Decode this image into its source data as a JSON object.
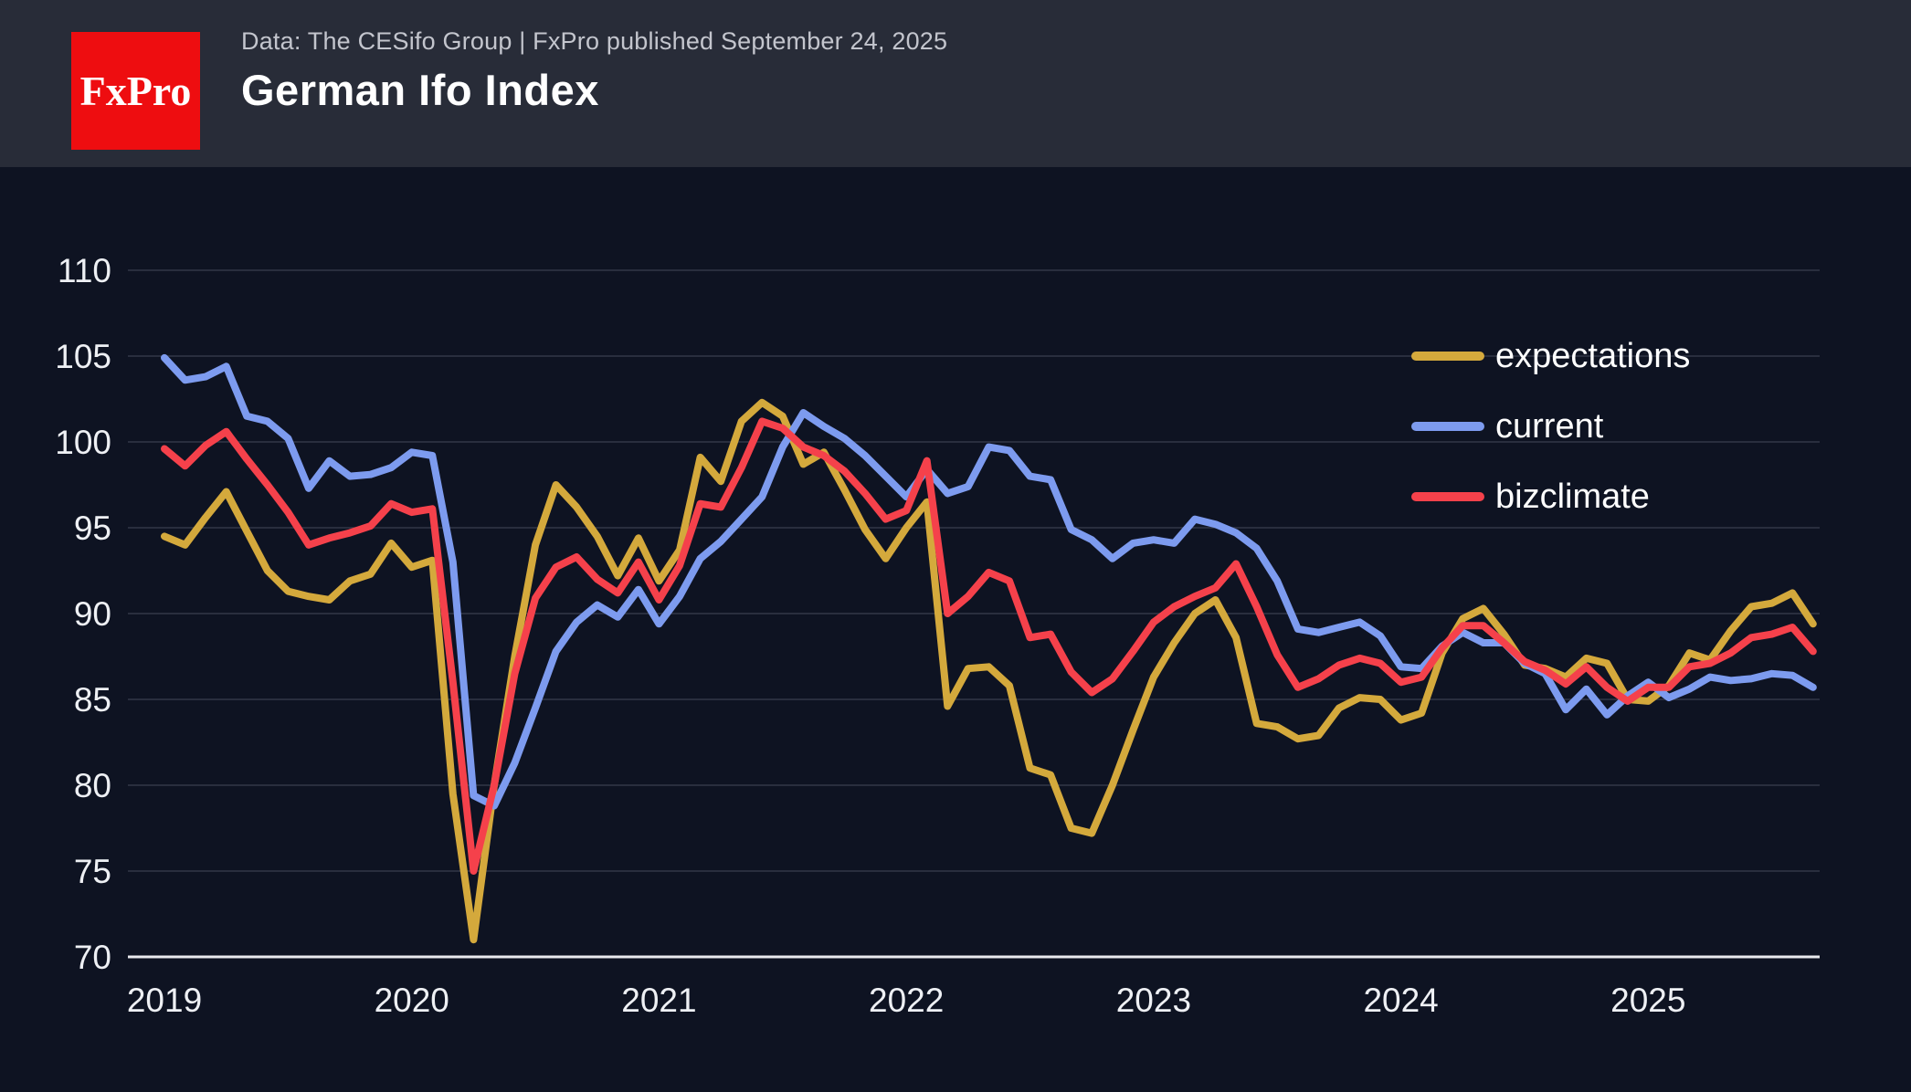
{
  "header": {
    "brand": "FxPro",
    "subtitle": "Data: The CESifo Group | FxPro published September 24, 2025",
    "title": "German Ifo Index"
  },
  "colors": {
    "logo_red": "#ee0d10",
    "header_bg": "#282c38",
    "chart_bg": "#0e1322",
    "gridline": "#323748",
    "axis_line": "#e9eaee",
    "tick_label": "#eef0f4",
    "expectations": "#d4a93c",
    "current": "#7d9bef",
    "bizclimate": "#f5414b"
  },
  "chart_data": {
    "type": "line",
    "title": "German Ifo Index",
    "x_start": "2019-01",
    "x_end": "2025-09",
    "frequency": "monthly",
    "xlabel": "",
    "ylabel": "",
    "ylim": [
      70,
      110
    ],
    "yticks": [
      110,
      105,
      100,
      95,
      90,
      85,
      80,
      75,
      70
    ],
    "xticks": [
      "2019",
      "2020",
      "2021",
      "2022",
      "2023",
      "2024",
      "2025"
    ],
    "grid": "horizontal",
    "legend_position": "right-top",
    "series": [
      {
        "name": "expectations",
        "color": "#d4a93c",
        "values": [
          94.5,
          94.0,
          95.6,
          97.1,
          94.8,
          92.5,
          91.3,
          91.0,
          90.8,
          91.9,
          92.3,
          94.1,
          92.7,
          93.1,
          79.5,
          71.0,
          80.0,
          87.5,
          94.0,
          97.5,
          96.2,
          94.5,
          92.2,
          94.4,
          91.9,
          93.7,
          99.1,
          97.7,
          101.2,
          102.3,
          101.5,
          98.7,
          99.4,
          97.2,
          94.9,
          93.2,
          95.0,
          96.5,
          84.6,
          86.8,
          86.9,
          85.8,
          81.0,
          80.6,
          77.5,
          77.2,
          80.0,
          83.2,
          86.3,
          88.3,
          90.0,
          90.8,
          88.6,
          83.6,
          83.4,
          82.7,
          82.9,
          84.5,
          85.1,
          85.0,
          83.8,
          84.2,
          87.7,
          89.7,
          90.3,
          88.8,
          87.0,
          86.8,
          86.3,
          87.4,
          87.1,
          85.0,
          84.9,
          85.8,
          87.7,
          87.3,
          89.0,
          90.4,
          90.6,
          91.2,
          89.4
        ]
      },
      {
        "name": "current",
        "color": "#7d9bef",
        "values": [
          104.9,
          103.6,
          103.8,
          104.4,
          101.5,
          101.2,
          100.2,
          97.3,
          98.9,
          98.0,
          98.1,
          98.5,
          99.4,
          99.2,
          93.0,
          79.4,
          78.8,
          81.3,
          84.5,
          87.8,
          89.5,
          90.5,
          89.8,
          91.4,
          89.4,
          91.0,
          93.2,
          94.2,
          95.5,
          96.8,
          99.7,
          101.7,
          100.9,
          100.2,
          99.2,
          98.0,
          96.8,
          98.4,
          97.0,
          97.4,
          99.7,
          99.5,
          98.0,
          97.8,
          94.9,
          94.3,
          93.2,
          94.1,
          94.3,
          94.1,
          95.5,
          95.2,
          94.7,
          93.8,
          91.9,
          89.1,
          88.9,
          89.2,
          89.5,
          88.7,
          86.9,
          86.8,
          88.1,
          88.9,
          88.3,
          88.3,
          87.1,
          86.5,
          84.4,
          85.6,
          84.1,
          85.2,
          86.0,
          85.1,
          85.6,
          86.3,
          86.1,
          86.2,
          86.5,
          86.4,
          85.7
        ]
      },
      {
        "name": "bizclimate",
        "color": "#f5414b",
        "values": [
          99.6,
          98.6,
          99.8,
          100.6,
          99.0,
          97.5,
          95.9,
          94.0,
          94.4,
          94.7,
          95.1,
          96.4,
          95.9,
          96.1,
          86.0,
          75.0,
          80.0,
          86.5,
          90.9,
          92.7,
          93.3,
          92.0,
          91.2,
          93.0,
          90.8,
          92.8,
          96.4,
          96.2,
          98.5,
          101.2,
          100.8,
          99.7,
          99.2,
          98.3,
          97.0,
          95.5,
          96.0,
          98.9,
          90.0,
          91.0,
          92.4,
          91.9,
          88.6,
          88.8,
          86.6,
          85.4,
          86.2,
          87.8,
          89.5,
          90.4,
          91.0,
          91.5,
          92.9,
          90.4,
          87.6,
          85.7,
          86.2,
          87.0,
          87.4,
          87.1,
          86.0,
          86.3,
          88.0,
          89.3,
          89.3,
          88.3,
          87.2,
          86.7,
          85.9,
          86.9,
          85.7,
          84.9,
          85.7,
          85.7,
          86.9,
          87.1,
          87.7,
          88.6,
          88.8,
          89.2,
          87.8
        ]
      }
    ]
  }
}
